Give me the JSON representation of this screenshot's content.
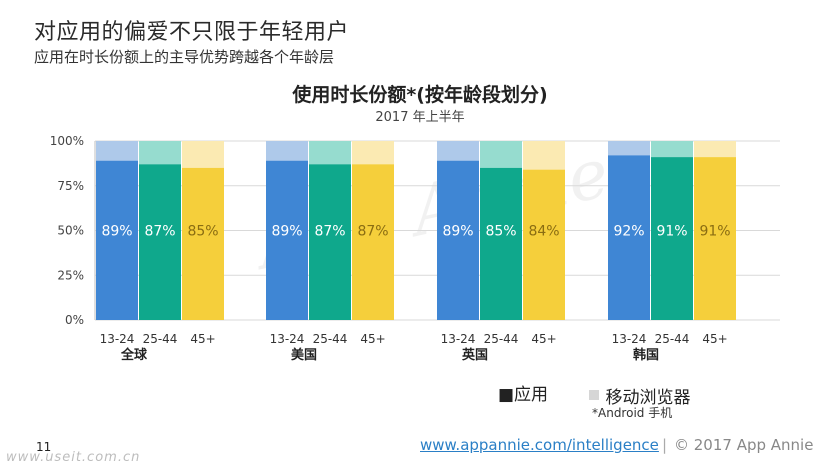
{
  "header": {
    "title": "对应用的偏爱不只限于年轻用户",
    "subtitle": "应用在时长份额上的主导优势跨越各个年龄层"
  },
  "chart_data": {
    "type": "bar",
    "stacked": true,
    "title": "使用时长份额*(按年龄段划分)",
    "subtitle": "2017 年上半年",
    "ylim": [
      0,
      100
    ],
    "yticks": [
      "0%",
      "25%",
      "50%",
      "75%",
      "100%"
    ],
    "grid": true,
    "groups": [
      {
        "name": "全球",
        "categories": [
          "13-24",
          "25-44",
          "45+"
        ],
        "app": [
          89,
          87,
          85
        ],
        "labels": [
          "89%",
          "87%",
          "85%"
        ]
      },
      {
        "name": "美国",
        "categories": [
          "13-24",
          "25-44",
          "45+"
        ],
        "app": [
          89,
          87,
          87
        ],
        "labels": [
          "89%",
          "87%",
          "87%"
        ]
      },
      {
        "name": "英国",
        "categories": [
          "13-24",
          "25-44",
          "45+"
        ],
        "app": [
          89,
          85,
          84
        ],
        "labels": [
          "89%",
          "85%",
          "84%"
        ]
      },
      {
        "name": "韩国",
        "categories": [
          "13-24",
          "25-44",
          "45+"
        ],
        "app": [
          92,
          91,
          91
        ],
        "labels": [
          "92%",
          "91%",
          "91%"
        ]
      }
    ],
    "series": [
      {
        "name": "应用",
        "colors": [
          "#3f86d4",
          "#0fa88c",
          "#f5cf3b"
        ]
      },
      {
        "name": "移动浏览器",
        "colors": [
          "#aec9ea",
          "#96dccf",
          "#fbeab2"
        ]
      }
    ],
    "legend_position": "bottom-right"
  },
  "watermark": "App Annie",
  "legend": {
    "app_label": "■应用",
    "browser_label": "移动浏览器",
    "app_color": "#555555",
    "browser_color": "#d6d6d6"
  },
  "footnote": "*Android 手机",
  "footer": {
    "page_number": "11",
    "site_mark": "www.useit.com.cn",
    "link": "www.appannie.com/intelligence",
    "separator": "|",
    "copyright": "© 2017 App Annie"
  }
}
